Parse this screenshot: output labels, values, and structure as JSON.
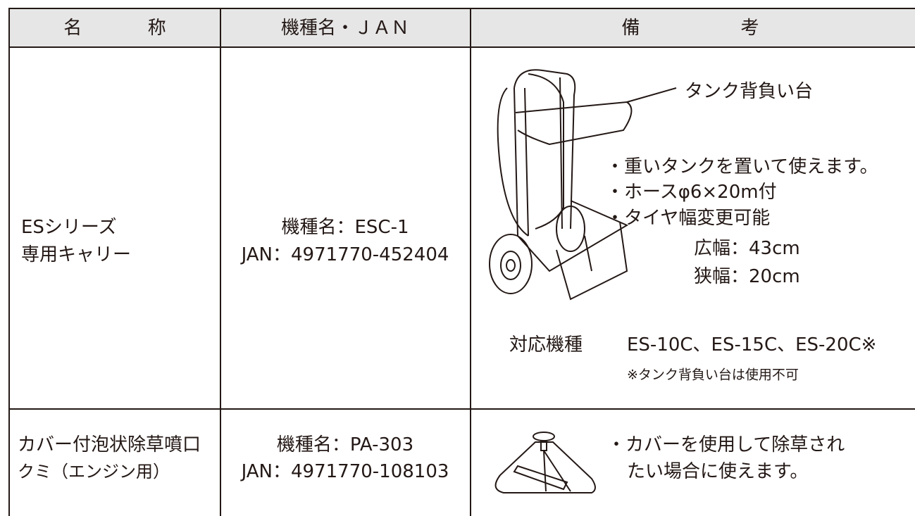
{
  "table": {
    "header": [
      "名称",
      "機種名・ＪＡＮ",
      "備考"
    ],
    "rows": [
      {
        "name": [
          "ESシリーズ",
          "専用キャリー"
        ],
        "model": [
          "機種名：ESC-1",
          "JAN：4971770-452404"
        ],
        "notes": {
          "callout": "タンク背負い台",
          "bullets": [
            "・重いタンクを置いて使えます。",
            "・ホースφ6×20m付",
            "・タイヤ幅変更可能"
          ],
          "widths": [
            "広幅：43cm",
            "狭幅：20cm"
          ],
          "compatible_label": "対応機種",
          "compatible_models": "ES-10C、ES-15C、ES-20C※",
          "footnote": "※タンク背負い台は使用不可"
        }
      },
      {
        "name": [
          "カバー付泡状除草噴口",
          "クミ（エンジン用）"
        ],
        "model": [
          "機種名：PA-303",
          "JAN：4971770-108103"
        ],
        "notes": {
          "bullets": [
            "・カバーを使用して除草され",
            "たい場合に使えます。"
          ]
        }
      }
    ]
  }
}
